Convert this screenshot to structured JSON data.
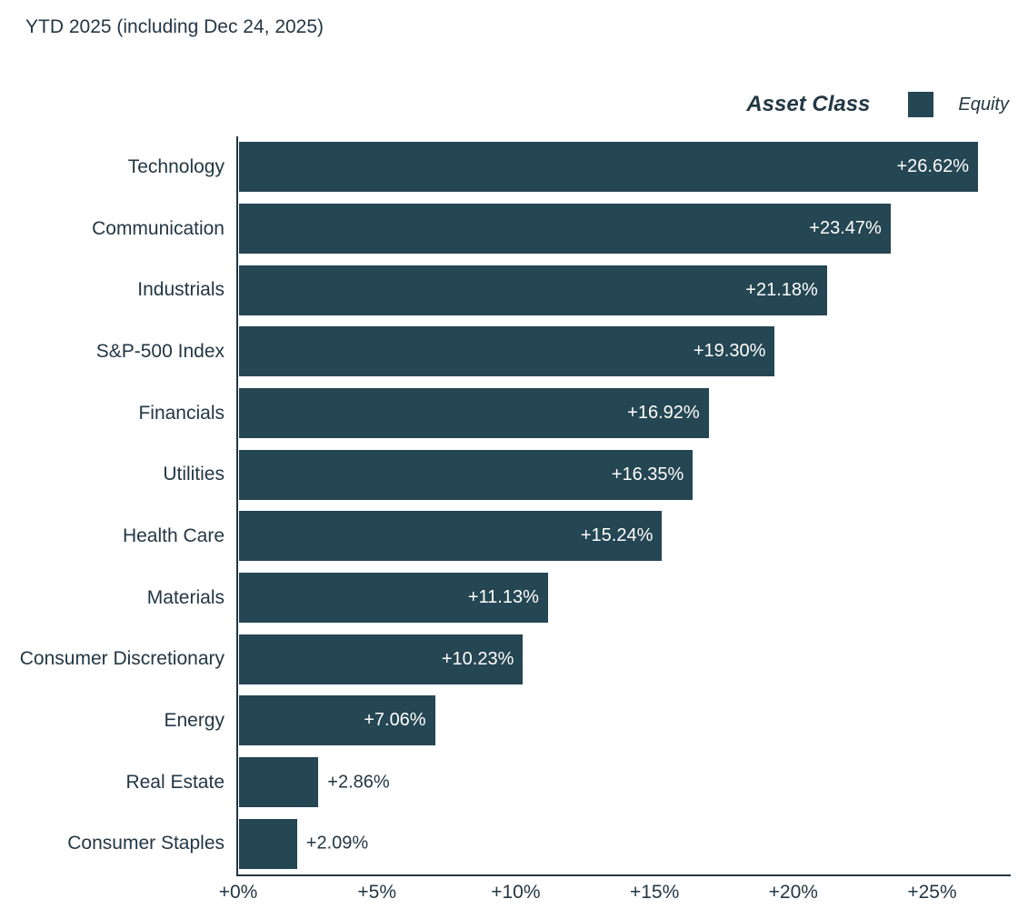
{
  "title": "YTD 2025 (including Dec 24, 2025)",
  "legend": {
    "title": "Asset Class",
    "items": [
      {
        "label": "Equity",
        "color": "#254653"
      }
    ],
    "position": "top-right"
  },
  "colors": {
    "bar": "#254653",
    "text": "#233744",
    "axis": "#233744",
    "value_label_inside": "#ffffff"
  },
  "chart_data": {
    "type": "bar",
    "orientation": "horizontal",
    "title": "YTD 2025 (including Dec 24, 2025)",
    "series_name": "Equity",
    "categories": [
      "Technology",
      "Communication",
      "Industrials",
      "S&P-500 Index",
      "Financials",
      "Utilities",
      "Health Care",
      "Materials",
      "Consumer Discretionary",
      "Energy",
      "Real Estate",
      "Consumer Staples"
    ],
    "values": [
      26.62,
      23.47,
      21.18,
      19.3,
      16.92,
      16.35,
      15.24,
      11.13,
      10.23,
      7.06,
      2.86,
      2.09
    ],
    "value_labels": [
      "+26.62%",
      "+23.47%",
      "+21.18%",
      "+19.30%",
      "+16.92%",
      "+16.35%",
      "+15.24%",
      "+11.13%",
      "+10.23%",
      "+7.06%",
      "+2.86%",
      "+2.09%"
    ],
    "x_ticks": [
      {
        "value": 0,
        "label": "+0%"
      },
      {
        "value": 5,
        "label": "+5%"
      },
      {
        "value": 10,
        "label": "+10%"
      },
      {
        "value": 15,
        "label": "+15%"
      },
      {
        "value": 20,
        "label": "+20%"
      },
      {
        "value": 25,
        "label": "+25%"
      }
    ],
    "xlabel": "",
    "ylabel": "",
    "xlim": [
      0,
      27.8
    ],
    "grid": false,
    "legend_position": "top-right",
    "bar_color": "#254653"
  }
}
